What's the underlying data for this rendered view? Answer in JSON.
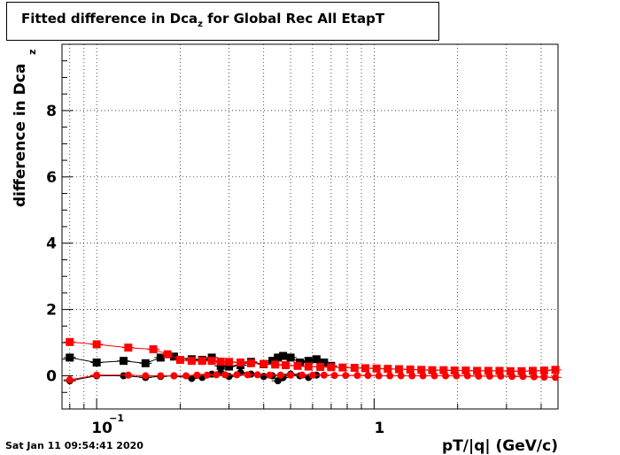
{
  "header": {
    "title_main": "Fitted difference in Dca",
    "title_sub": "z",
    "title_rest": " for Global Rec All EtapT"
  },
  "footer": {
    "timestamp": "Sat Jan 11 09:54:41 2020"
  },
  "chart_data": {
    "type": "scatter",
    "title": "Fitted difference in Dca_z for Global Rec All EtapT",
    "xlabel": "pT/|q| (GeV/c)",
    "ylabel_main": "difference in Dca",
    "ylabel_sub": "z",
    "x_scale": "log",
    "xlim": [
      0.075,
      4.6
    ],
    "ylim": [
      -1.0,
      10.0
    ],
    "grid": true,
    "x_ticks": [
      {
        "value": 0.1,
        "base": "10",
        "exp": "−1"
      },
      {
        "value": 1,
        "base": "1",
        "exp": ""
      }
    ],
    "y_ticks": [
      0,
      2,
      4,
      6,
      8
    ],
    "colors": {
      "black": "#000000",
      "red": "#ff0000"
    },
    "series": [
      {
        "color": "#000000",
        "marker": "square",
        "x": [
          0.08,
          0.1,
          0.125,
          0.15,
          0.17,
          0.19,
          0.22,
          0.24,
          0.26,
          0.28,
          0.3,
          0.33,
          0.36,
          0.4,
          0.43,
          0.45,
          0.47,
          0.5,
          0.54,
          0.58,
          0.62,
          0.66,
          0.7
        ],
        "y": [
          0.55,
          0.4,
          0.45,
          0.38,
          0.55,
          0.58,
          0.5,
          0.48,
          0.55,
          0.3,
          0.28,
          0.32,
          0.42,
          0.35,
          0.45,
          0.55,
          0.6,
          0.55,
          0.4,
          0.45,
          0.5,
          0.4,
          0.3
        ]
      },
      {
        "color": "#000000",
        "marker": "circle",
        "x": [
          0.08,
          0.1,
          0.125,
          0.15,
          0.17,
          0.19,
          0.22,
          0.24,
          0.26,
          0.28,
          0.3,
          0.33,
          0.36,
          0.4,
          0.43,
          0.45,
          0.47,
          0.5,
          0.54,
          0.58,
          0.62
        ],
        "y": [
          -0.15,
          0.0,
          0.0,
          -0.05,
          -0.02,
          0.0,
          -0.08,
          -0.05,
          0.05,
          0.1,
          -0.02,
          0.1,
          0.05,
          -0.02,
          0.0,
          -0.15,
          -0.05,
          0.05,
          0.0,
          -0.05,
          0.02
        ]
      },
      {
        "color": "#ff0000",
        "marker": "square",
        "x": [
          0.08,
          0.1,
          0.13,
          0.16,
          0.18,
          0.2,
          0.22,
          0.24,
          0.26,
          0.28,
          0.3,
          0.33,
          0.36,
          0.4,
          0.44,
          0.48,
          0.53,
          0.58,
          0.64,
          0.7,
          0.77,
          0.85,
          0.93,
          1.02,
          1.12,
          1.23,
          1.35,
          1.48,
          1.62,
          1.78,
          1.95,
          2.14,
          2.35,
          2.58,
          2.83,
          3.1,
          3.4,
          3.73,
          4.1,
          4.5
        ],
        "y": [
          1.02,
          0.95,
          0.85,
          0.8,
          0.65,
          0.48,
          0.45,
          0.45,
          0.45,
          0.43,
          0.42,
          0.4,
          0.38,
          0.36,
          0.34,
          0.32,
          0.3,
          0.28,
          0.27,
          0.26,
          0.25,
          0.24,
          0.23,
          0.22,
          0.21,
          0.2,
          0.19,
          0.18,
          0.17,
          0.17,
          0.16,
          0.16,
          0.15,
          0.15,
          0.15,
          0.14,
          0.14,
          0.15,
          0.16,
          0.18
        ]
      },
      {
        "color": "#ff0000",
        "marker": "circle",
        "x": [
          0.08,
          0.1,
          0.13,
          0.15,
          0.17,
          0.19,
          0.21,
          0.23,
          0.25,
          0.27,
          0.29,
          0.32,
          0.35,
          0.38,
          0.42,
          0.46,
          0.5,
          0.55,
          0.6,
          0.66,
          0.72,
          0.79,
          0.87,
          0.95,
          1.04,
          1.14,
          1.25,
          1.37,
          1.5,
          1.65,
          1.81,
          1.98,
          2.17,
          2.38,
          2.61,
          2.86,
          3.14,
          3.44,
          3.77,
          4.1,
          4.5
        ],
        "y": [
          -0.12,
          0.02,
          0.02,
          0.0,
          0.0,
          0.0,
          0.0,
          0.02,
          0.02,
          0.03,
          0.03,
          0.03,
          0.03,
          0.03,
          0.02,
          0.02,
          0.02,
          0.02,
          0.02,
          0.02,
          0.01,
          0.01,
          0.01,
          0.01,
          0.0,
          0.0,
          0.0,
          0.0,
          0.0,
          0.0,
          0.0,
          0.0,
          0.0,
          -0.01,
          -0.01,
          -0.01,
          -0.02,
          -0.02,
          -0.03,
          -0.04,
          -0.05
        ]
      }
    ]
  }
}
